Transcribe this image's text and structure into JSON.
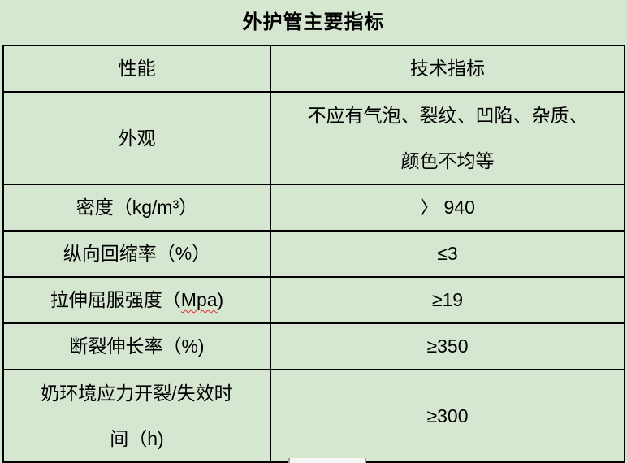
{
  "colors": {
    "background": "#d6e7d1",
    "border": "#000000",
    "text": "#000000",
    "spellcheck_underline": "#e03030"
  },
  "title": "外护管主要指标",
  "table": {
    "columns": [
      "性能",
      "技术指标"
    ],
    "rows": [
      {
        "property": "外观",
        "value_lines": [
          "不应有气泡、裂纹、凹陷、杂质、",
          "颜色不均等"
        ]
      },
      {
        "property": "密度（kg/m³）",
        "value": "〉 940"
      },
      {
        "property": "纵向回缩率（%）",
        "value": "≤3"
      },
      {
        "property_prefix": "拉伸屈服强度（",
        "property_spellchecked": "Mpa",
        "property_suffix": ")",
        "value": "≥19"
      },
      {
        "property": "断裂伸长率（%)",
        "value": "≥350"
      },
      {
        "property_lines": [
          "奶环境应力开裂/失效时",
          "间（h)"
        ],
        "value": "≥300"
      }
    ]
  }
}
